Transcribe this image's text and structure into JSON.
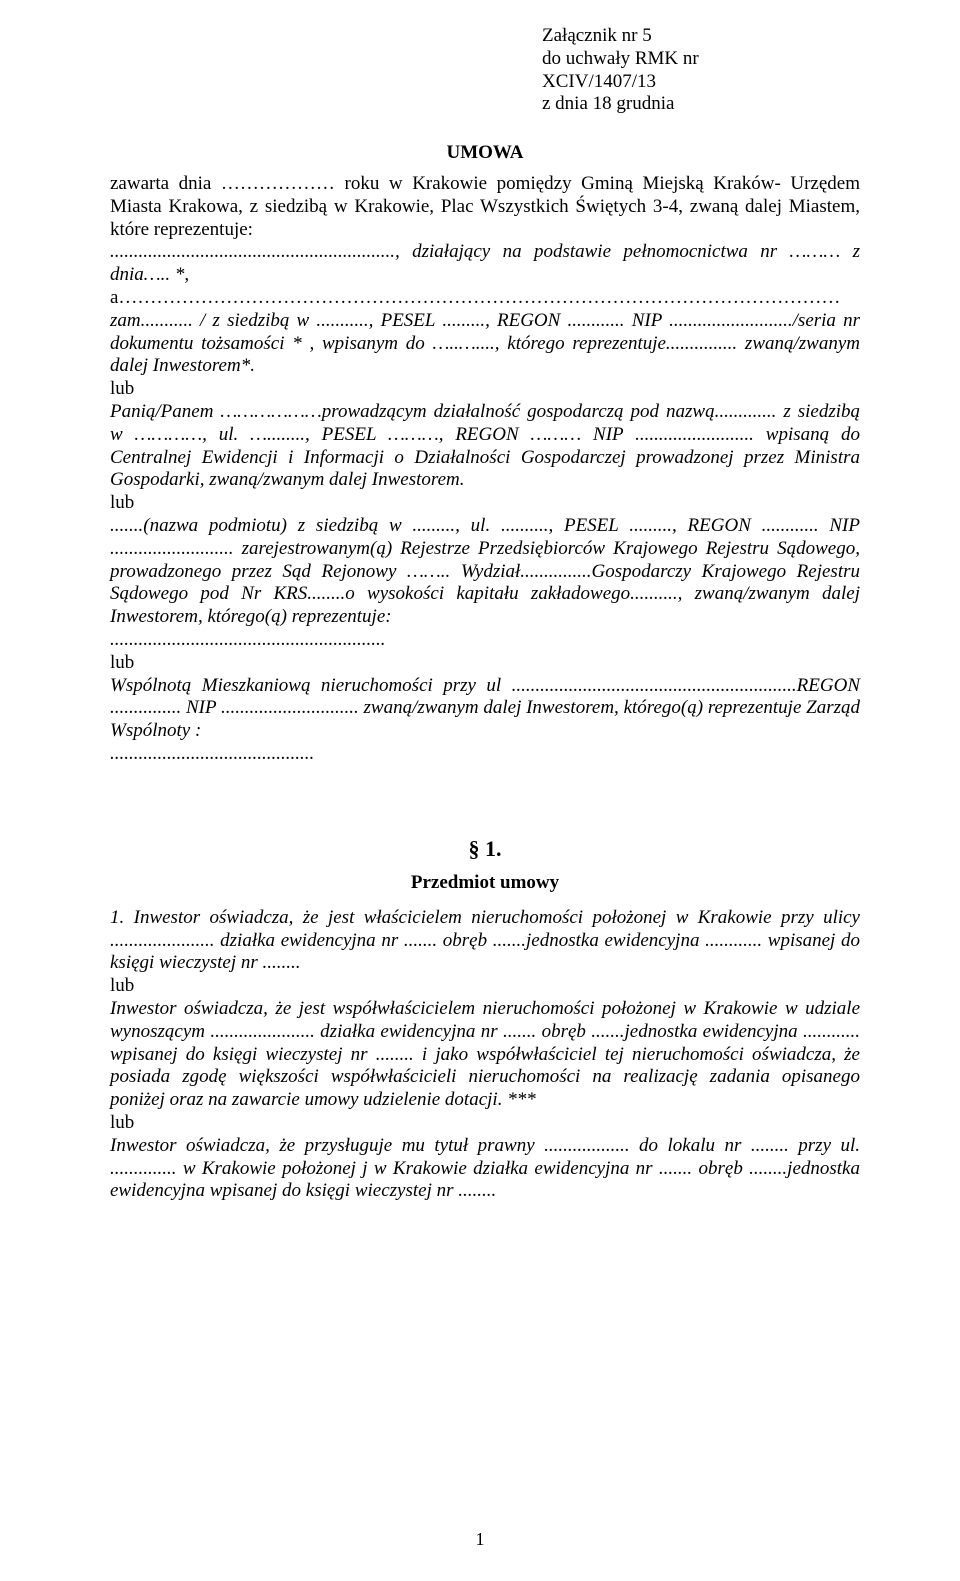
{
  "attachment": {
    "line1": "Załącznik nr 5",
    "line2": "do uchwały RMK nr",
    "line3": "XCIV/1407/13",
    "line4": "z dnia 18 grudnia"
  },
  "title": "UMOWA",
  "intro": {
    "p1": "zawarta dnia ……………… roku w Krakowie pomiędzy Gminą Miejską Kraków- Urzędem Miasta Krakowa, z siedzibą w Krakowie, Plac Wszystkich Świętych 3-4, zwaną dalej Miastem, które reprezentuje:",
    "p2": "............................................................, działający na podstawie pełnomocnictwa nr ……… z dnia….. *,",
    "p3_prefix": "a……………………………………………………………………………………………………",
    "p3_body": "zam........... / z siedzibą w ..........., PESEL ........., REGON ............ NIP ........................../seria nr dokumentu tożsamości * , wpisanym do …..…...., którego reprezentuje............... zwaną/zwanym dalej Inwestorem*.",
    "lub1": "lub",
    "p4": "Panią/Panem ………………prowadzącym działalność gospodarczą pod nazwą............. z   siedzibą   w    …………,   ul. …........,   PESEL   ………,   REGON   ………   NIP ......................... wpisaną do Centralnej Ewidencji i Informacji o Działalności Gospodarczej prowadzonej przez Ministra Gospodarki, zwaną/zwanym dalej Inwestorem.",
    "lub2": "lub",
    "p5": ".......(nazwa podmiotu) z siedzibą w ........., ul. ..........,  PESEL ........., REGON ............ NIP ..........................  zarejestrowanym(ą)  Rejestrze  Przedsiębiorców  Krajowego  Rejestru Sądowego,  prowadzonego  przez  Sąd  Rejonowy ……..  Wydział...............Gospodarczy Krajowego Rejestru Sądowego pod Nr KRS........o wysokości kapitału zakładowego.........., zwaną/zwanym dalej Inwestorem, którego(ą) reprezentuje:",
    "p5b": "..........................................................",
    "lub3": "lub",
    "p6": "Wspólnotą Mieszkaniową  nieruchomości  przy ul ............................................................REGON ...............   NIP .............................   zwaną/zwanym   dalej   Inwestorem,   którego(ą) reprezentuje Zarząd Wspólnoty :",
    "p6b": "..........................................."
  },
  "section1": {
    "num": "§ 1.",
    "title": "Przedmiot umowy",
    "p1": "1.   Inwestor oświadcza, że jest właścicielem nieruchomości  położonej   w Krakowie przy ulicy ...................... działka ewidencyjna nr ....... obręb .......jednostka ewidencyjna ............   wpisanej do księgi wieczystej nr ........",
    "lub1": "lub",
    "p2": "Inwestor oświadcza, że jest współwłaścicielem nieruchomości  położonej  w Krakowie w udziale wynoszącym ......................  działka  ewidencyjna  nr .......  obręb .......jednostka ewidencyjna ............   wpisanej do księgi wieczystej nr ........   i jako współwłaściciel tej nieruchomości  oświadcza, że posiada zgodę większości współwłaścicieli nieruchomości na realizację zadania opisanego poniżej oraz na zawarcie umowy  udzielenie dotacji. ***",
    "lub2": "lub",
    "p3": "Inwestor oświadcza, że przysługuje mu tytuł prawny .................. do lokalu nr ........   przy ul. .............. w Krakowie położonej j w Krakowie działka ewidencyjna nr ....... obręb ........jednostka ewidencyjna  wpisanej do księgi wieczystej nr ........"
  },
  "page_number": "1"
}
